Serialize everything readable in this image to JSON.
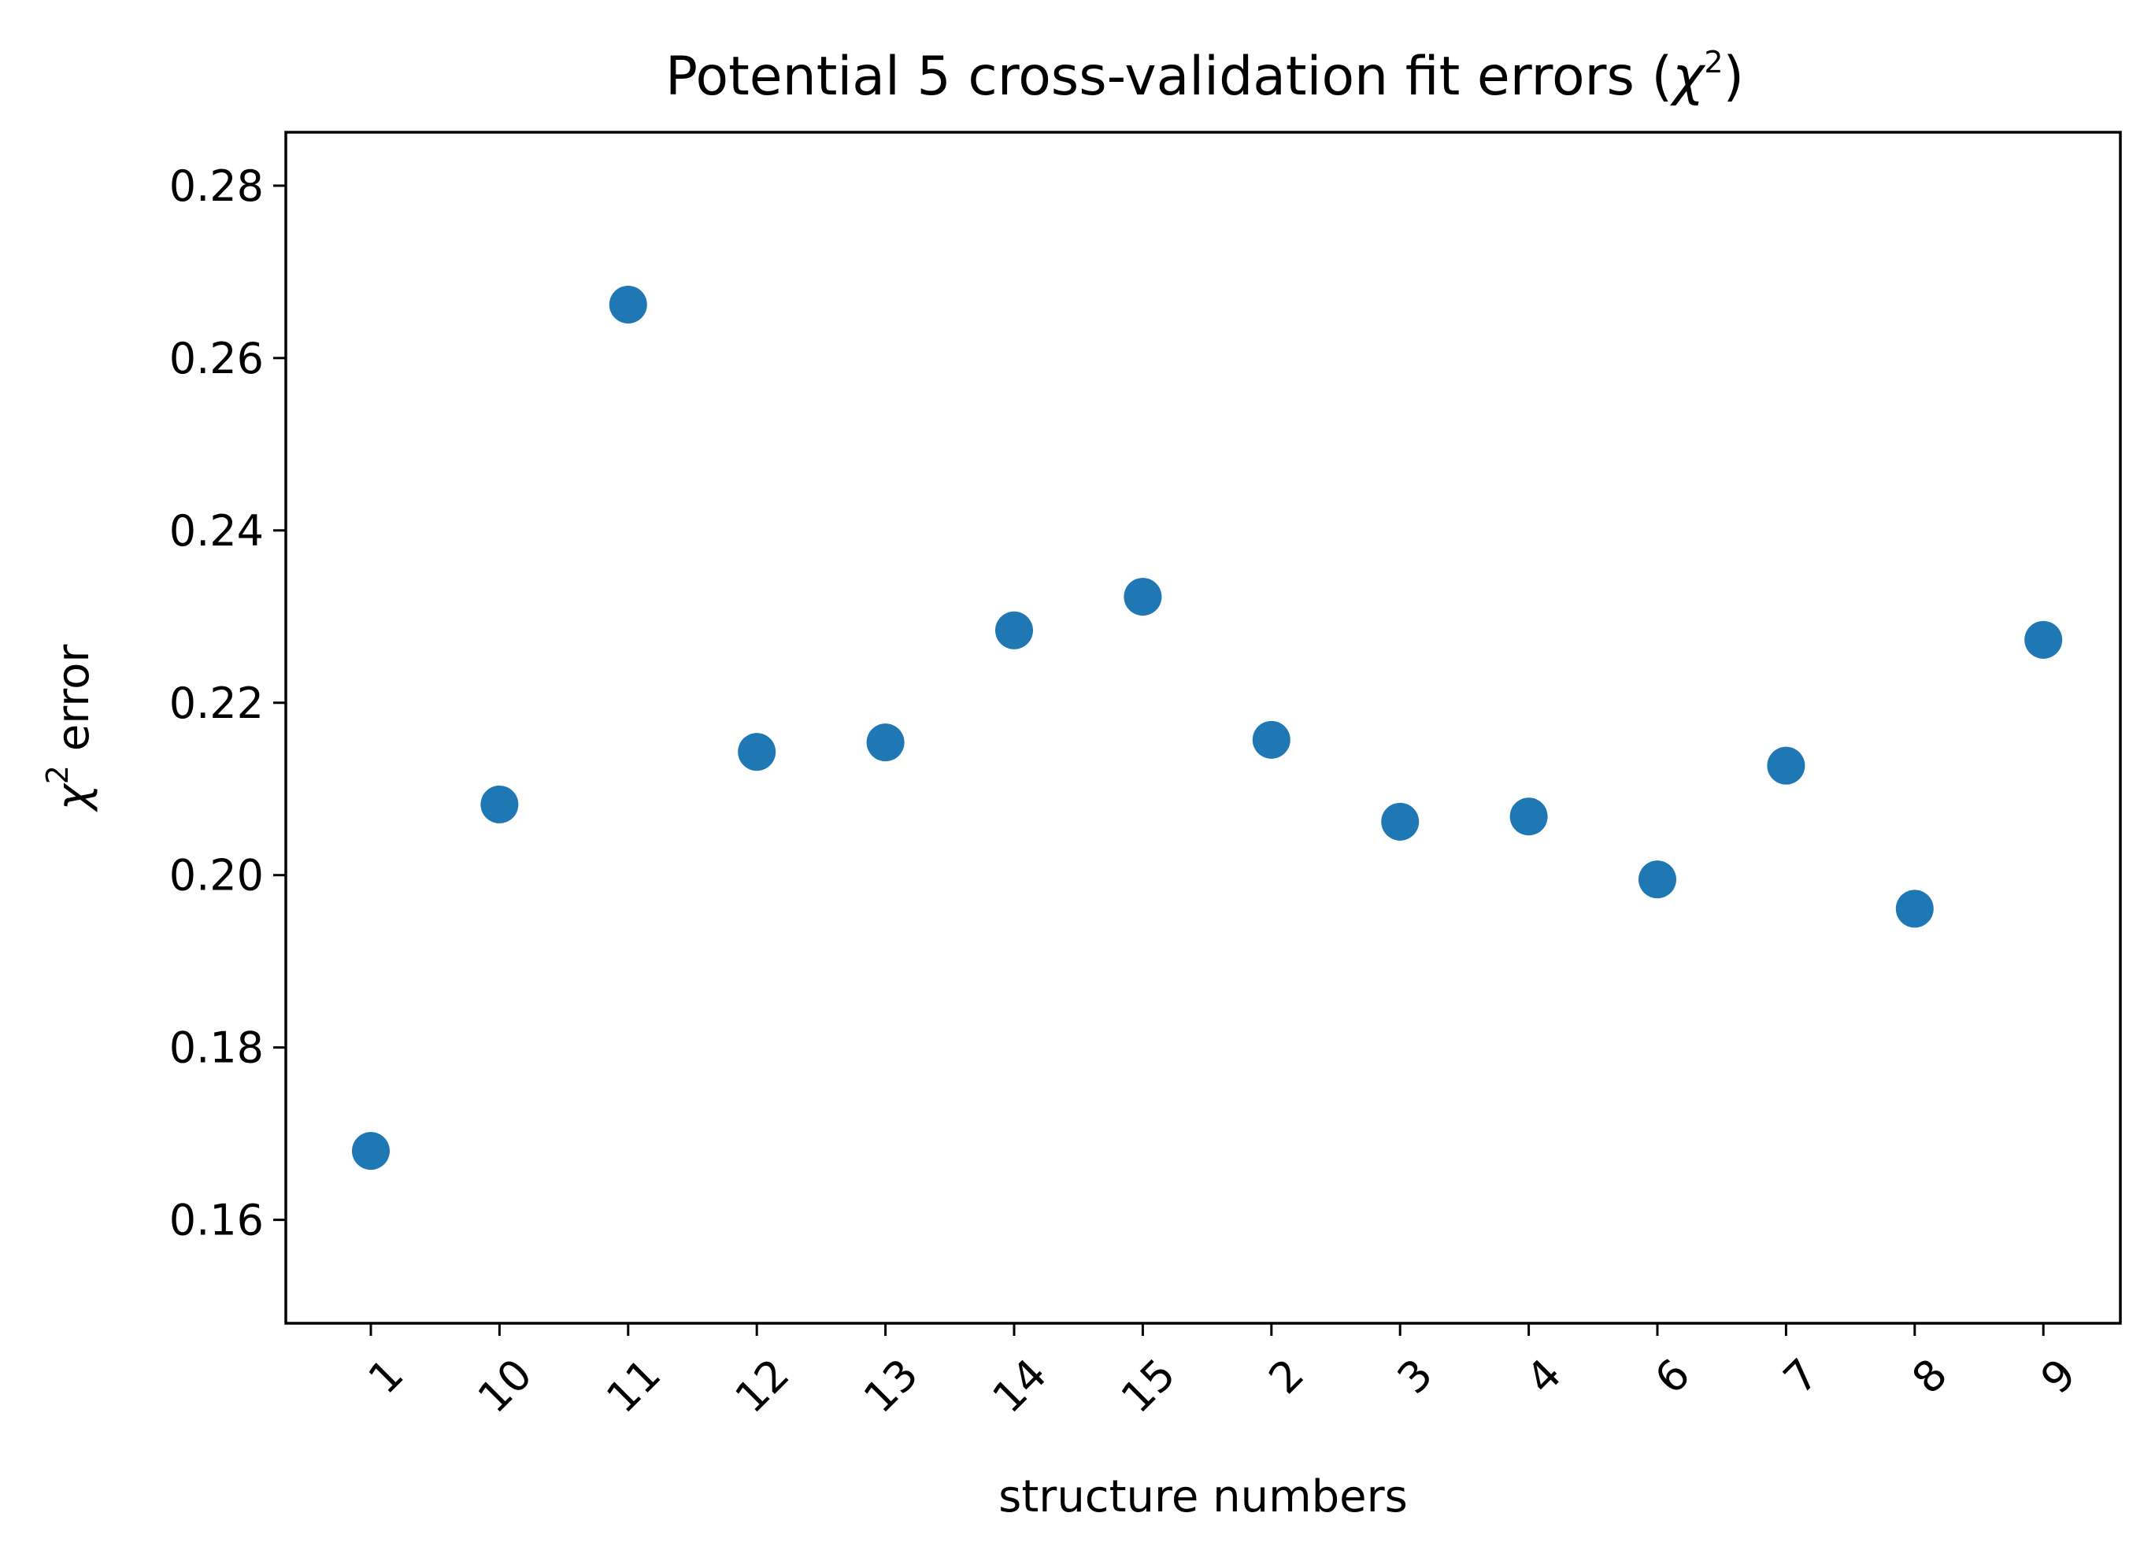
{
  "chart_data": {
    "type": "scatter",
    "title": "Potential 5 cross-validation fit errors (",
    "title_symbol": "χ",
    "title_exponent": "2",
    "title_suffix": ")",
    "xlabel": "structure numbers",
    "ylabel_symbol": "χ",
    "ylabel_exponent": "2",
    "ylabel_suffix": " error",
    "categories": [
      "1",
      "10",
      "11",
      "12",
      "13",
      "14",
      "15",
      "2",
      "3",
      "4",
      "6",
      "7",
      "8",
      "9"
    ],
    "series": [
      {
        "values": [
          0.168,
          0.2082,
          0.2662,
          0.2143,
          0.2154,
          0.2284,
          0.2323,
          0.2157,
          0.2062,
          0.2068,
          0.1995,
          0.2127,
          0.1961,
          0.2273
        ],
        "color": "#1f77b4"
      }
    ],
    "ylim": [
      0.148,
      0.2862
    ],
    "yticks": [
      0.16,
      0.18,
      0.2,
      0.22,
      0.24,
      0.26,
      0.28
    ],
    "ytick_labels": [
      "0.16",
      "0.18",
      "0.20",
      "0.22",
      "0.24",
      "0.26",
      "0.28"
    ],
    "xtick_rotation": "45°",
    "grid": false,
    "legend": "none"
  }
}
